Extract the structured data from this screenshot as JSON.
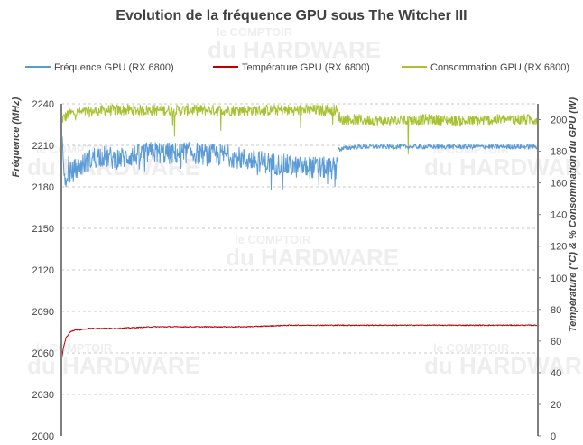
{
  "chart_data": {
    "type": "line",
    "title": "Evolution de la fréquence GPU sous The Witcher III",
    "ylabel_left": "Fréquence (MHz)",
    "ylabel_right": "Température (°C) & % Consommation du GPU (W)",
    "y_left_range": [
      2000,
      2240
    ],
    "y_left_ticks": [
      2000,
      2030,
      2060,
      2090,
      2120,
      2150,
      2180,
      2210,
      2240
    ],
    "y_right_range": [
      0,
      210
    ],
    "y_right_ticks": [
      0,
      20,
      40,
      60,
      80,
      100,
      120,
      140,
      160,
      180,
      200
    ],
    "grid": true,
    "legend_position": "top",
    "series": [
      {
        "name": "Fréquence GPU (RX 6800)",
        "axis": "left",
        "color": "#5b9bd5",
        "x": [
          0,
          1,
          3,
          5,
          8,
          10,
          20,
          40,
          60,
          80,
          100,
          120,
          140,
          160,
          180,
          200,
          220,
          240,
          250,
          260,
          280,
          300,
          302,
          320,
          360,
          400,
          440,
          480,
          520
        ],
        "values": [
          2200,
          2215,
          2186,
          2176,
          2195,
          2190,
          2195,
          2203,
          2200,
          2203,
          2205,
          2204,
          2205,
          2203,
          2203,
          2200,
          2198,
          2196,
          2195,
          2194,
          2194,
          2193,
          2207,
          2209,
          2209,
          2209,
          2209,
          2209,
          2209
        ]
      },
      {
        "name": "Température GPU (RX 6800)",
        "axis": "right",
        "color": "#c00000",
        "x": [
          0,
          2,
          5,
          10,
          15,
          20,
          30,
          60,
          100,
          150,
          200,
          250,
          300,
          350,
          400,
          450,
          520
        ],
        "values": [
          47,
          55,
          62,
          66,
          67,
          67,
          68,
          68,
          69,
          69,
          69,
          70,
          70,
          70,
          70,
          70,
          70
        ]
      },
      {
        "name": "Consommation GPU (RX 6800)",
        "axis": "right",
        "color": "#a6c22f",
        "x": [
          0,
          10,
          50,
          100,
          150,
          200,
          250,
          300,
          305,
          320,
          360,
          400,
          440,
          480,
          520
        ],
        "values": [
          200,
          204,
          206,
          206,
          206,
          206,
          206,
          206,
          200,
          200,
          199,
          200,
          199,
          200,
          200
        ]
      }
    ]
  },
  "watermark": {
    "line1": "le COMPTOIR",
    "line2": "du HARDWARE"
  }
}
